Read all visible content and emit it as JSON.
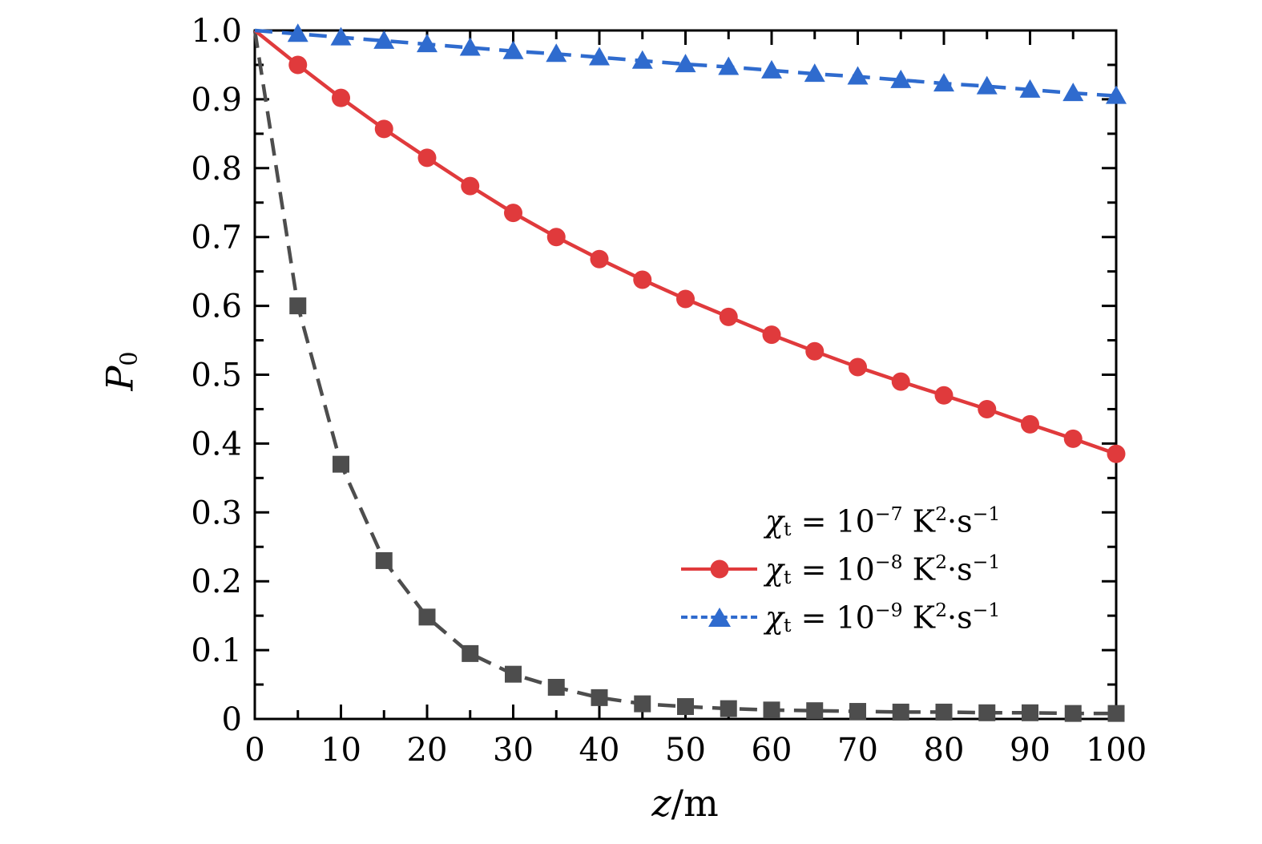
{
  "figure": {
    "background": "#ffffff",
    "frame_color": "#000000"
  },
  "axes": {
    "xlim": [
      0,
      100
    ],
    "ylim": [
      0,
      1.0
    ],
    "xtick_values": [
      0,
      10,
      20,
      30,
      40,
      50,
      60,
      70,
      80,
      90,
      100
    ],
    "xtick_labels": [
      "0",
      "10",
      "20",
      "30",
      "40",
      "50",
      "60",
      "70",
      "80",
      "90",
      "100"
    ],
    "ytick_values": [
      0,
      0.1,
      0.2,
      0.3,
      0.4,
      0.5,
      0.6,
      0.7,
      0.8,
      0.9,
      1.0
    ],
    "ytick_labels": [
      "0",
      "0.1",
      "0.2",
      "0.3",
      "0.4",
      "0.5",
      "0.6",
      "0.7",
      "0.8",
      "0.9",
      "1.0"
    ],
    "xminor_step": 5,
    "yminor_step": 0.05,
    "xlabel": {
      "var": "z",
      "sep": "/",
      "unit": "m"
    },
    "ylabel": {
      "var": "P",
      "sub": "0"
    }
  },
  "chart_data": {
    "type": "line",
    "title": "",
    "xlabel": "z/m",
    "ylabel": "P0",
    "xlim": [
      0,
      100
    ],
    "ylim": [
      0,
      1.0
    ],
    "grid": false,
    "legend_position": "lower right inside",
    "x": [
      0,
      5,
      10,
      15,
      20,
      25,
      30,
      35,
      40,
      45,
      50,
      55,
      60,
      65,
      70,
      75,
      80,
      85,
      90,
      95,
      100
    ],
    "series": [
      {
        "name": "chi_t = 1e-7 K^2*s^-1",
        "color": "#4d4d4d",
        "marker": "square",
        "linestyle": "dashed",
        "values": [
          1.0,
          0.6,
          0.37,
          0.23,
          0.148,
          0.095,
          0.065,
          0.046,
          0.031,
          0.022,
          0.018,
          0.015,
          0.013,
          0.012,
          0.011,
          0.01,
          0.01,
          0.009,
          0.009,
          0.008,
          0.008
        ]
      },
      {
        "name": "chi_t = 1e-8 K^2*s^-1",
        "color": "#e03a3c",
        "marker": "circle",
        "linestyle": "solid",
        "values": [
          1.0,
          0.95,
          0.902,
          0.857,
          0.815,
          0.774,
          0.735,
          0.7,
          0.668,
          0.638,
          0.61,
          0.584,
          0.558,
          0.534,
          0.511,
          0.49,
          0.47,
          0.45,
          0.428,
          0.407,
          0.385
        ]
      },
      {
        "name": "chi_t = 1e-9 K^2*s^-1",
        "color": "#2f6bce",
        "marker": "triangle",
        "linestyle": "dashed",
        "values": [
          1.0,
          0.995,
          0.99,
          0.985,
          0.98,
          0.975,
          0.97,
          0.966,
          0.961,
          0.956,
          0.951,
          0.947,
          0.942,
          0.937,
          0.933,
          0.928,
          0.923,
          0.919,
          0.914,
          0.909,
          0.905
        ]
      }
    ]
  },
  "legend": {
    "items": [
      {
        "marker": "none",
        "color": "#4d4d4d",
        "sym": "χ",
        "sub": "t",
        "eq": " = 10",
        "exp": "−7",
        "sp": " ",
        "u1": "K",
        "u1e": "2",
        "dot": "·",
        "u2": "s",
        "u2e": "−1"
      },
      {
        "marker": "circle",
        "color": "#e03a3c",
        "sym": "χ",
        "sub": "t",
        "eq": " = 10",
        "exp": "−8",
        "sp": " ",
        "u1": "K",
        "u1e": "2",
        "dot": "·",
        "u2": "s",
        "u2e": "−1"
      },
      {
        "marker": "triangle",
        "color": "#2f6bce",
        "sym": "χ",
        "sub": "t",
        "eq": " = 10",
        "exp": "−9",
        "sp": " ",
        "u1": "K",
        "u1e": "2",
        "dot": "·",
        "u2": "s",
        "u2e": "−1"
      }
    ]
  }
}
